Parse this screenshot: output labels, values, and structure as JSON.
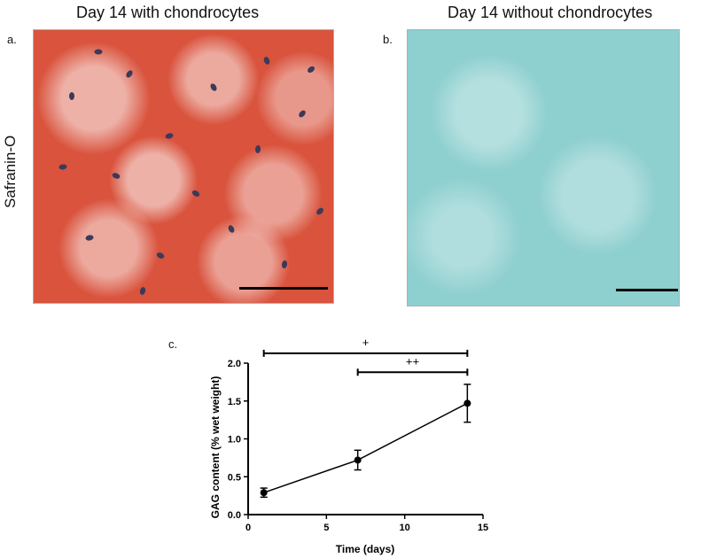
{
  "panels": {
    "a": {
      "letter": "a.",
      "title": "Day 14 with chondrocytes"
    },
    "b": {
      "letter": "b.",
      "title": "Day 14 without chondrocytes"
    },
    "c": {
      "letter": "c."
    }
  },
  "row_label": "Safranin-O",
  "colors": {
    "safranin": "#d9533d",
    "fastgreen": "#8ecfcf",
    "line": "#000000"
  },
  "chart_data": {
    "type": "line",
    "xlabel": "Time (days)",
    "ylabel": "GAG content (% wet weight)",
    "xlim": [
      0,
      15
    ],
    "ylim": [
      0,
      2.0
    ],
    "xticks": [
      0,
      5,
      10,
      15
    ],
    "yticks": [
      "0.0",
      "0.5",
      "1.0",
      "1.5",
      "2.0"
    ],
    "x": [
      1,
      7,
      14
    ],
    "y": [
      0.29,
      0.72,
      1.47
    ],
    "err": [
      0.06,
      0.13,
      0.25
    ],
    "significance": [
      {
        "label": "+",
        "from": 1,
        "to": 14,
        "level": 2.13
      },
      {
        "label": "++",
        "from": 7,
        "to": 14,
        "level": 1.88
      }
    ]
  }
}
